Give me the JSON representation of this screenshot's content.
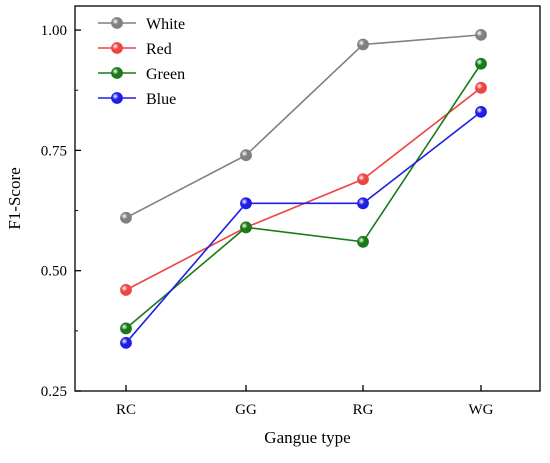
{
  "chart_data": {
    "type": "line",
    "title": "",
    "xlabel": "Gangue type",
    "ylabel": "F1-Score",
    "categories": [
      "RC",
      "GG",
      "RG",
      "WG"
    ],
    "ylim": [
      0.25,
      1.05
    ],
    "yticks": [
      "0.25",
      "0.50",
      "0.75",
      "1.00"
    ],
    "ytick_values": [
      0.25,
      0.5,
      0.75,
      1.0
    ],
    "grid": false,
    "legend_position": "top-left",
    "series": [
      {
        "name": "White",
        "color": "#808080",
        "values": [
          0.61,
          0.74,
          0.97,
          0.99
        ]
      },
      {
        "name": "Red",
        "color": "#ef4444",
        "values": [
          0.46,
          0.59,
          0.69,
          0.88
        ]
      },
      {
        "name": "Green",
        "color": "#1a7a1a",
        "values": [
          0.38,
          0.59,
          0.56,
          0.93
        ]
      },
      {
        "name": "Blue",
        "color": "#1e1ee6",
        "values": [
          0.35,
          0.64,
          0.64,
          0.83
        ]
      }
    ]
  }
}
